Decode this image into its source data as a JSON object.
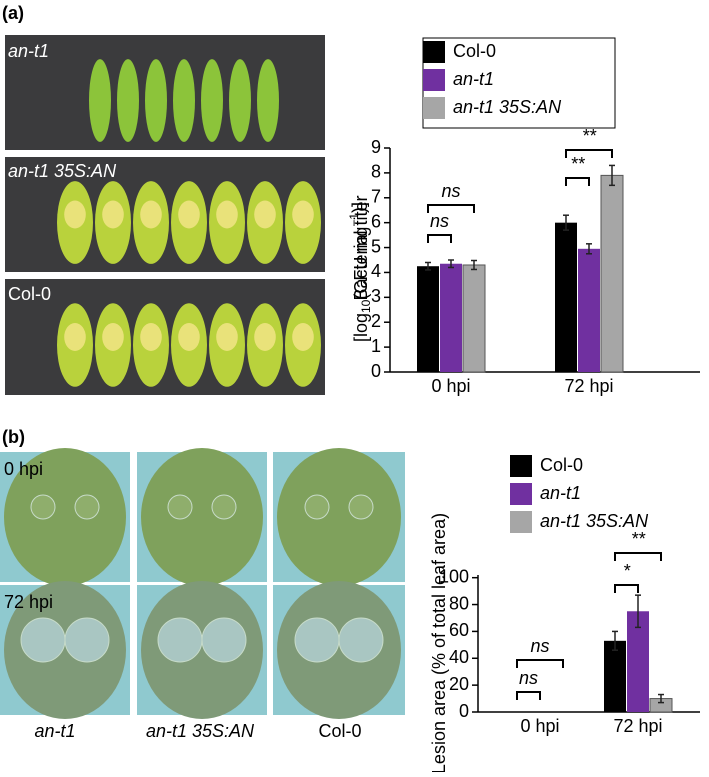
{
  "panel_labels": [
    "(a)",
    "(b)"
  ],
  "photos_a": [
    "an-t1",
    "an-t1 35S:AN",
    "Col-0"
  ],
  "photos_b": {
    "rows": [
      "0 hpi",
      "72 hpi"
    ],
    "columns": [
      "an-t1",
      "an-t1 35S:AN",
      "Col-0"
    ]
  },
  "chart_data": [
    {
      "type": "bar",
      "ylabel": [
        "Bacterial titer",
        "[log",
        "10",
        "(CFU mg",
        "−1",
        ")]"
      ],
      "categories": [
        "0 hpi",
        "72 hpi"
      ],
      "series": [
        {
          "name": "Col-0",
          "color": "#000000",
          "values": [
            4.25,
            6.0
          ],
          "errors": [
            0.15,
            0.3
          ]
        },
        {
          "name": "an-t1",
          "color": "#7030a0",
          "values": [
            4.35,
            4.95
          ],
          "errors": [
            0.15,
            0.2
          ]
        },
        {
          "name": "an-t1 35S:AN",
          "color": "#a6a6a6",
          "values": [
            4.3,
            7.9
          ],
          "errors": [
            0.18,
            0.4
          ]
        }
      ],
      "ylim": [
        0,
        9
      ],
      "yticks": [
        0,
        1,
        2,
        3,
        4,
        5,
        6,
        7,
        8,
        9
      ],
      "annotations": [
        {
          "text": "ns",
          "category": 0,
          "series": [
            0,
            1
          ]
        },
        {
          "text": "ns",
          "category": 0,
          "series": [
            0,
            2
          ]
        },
        {
          "text": "**",
          "category": 1,
          "series": [
            0,
            1
          ]
        },
        {
          "text": "**",
          "category": 1,
          "series": [
            0,
            2
          ]
        }
      ]
    },
    {
      "type": "bar",
      "ylabel": [
        "Lesion area (% of total leaf area)"
      ],
      "categories": [
        "0 hpi",
        "72 hpi"
      ],
      "series": [
        {
          "name": "Col-0",
          "color": "#000000",
          "values": [
            0,
            53
          ],
          "errors": [
            0,
            7
          ]
        },
        {
          "name": "an-t1",
          "color": "#7030a0",
          "values": [
            0,
            75
          ],
          "errors": [
            0,
            12
          ]
        },
        {
          "name": "an-t1 35S:AN",
          "color": "#a6a6a6",
          "values": [
            0,
            10
          ],
          "errors": [
            0,
            3
          ]
        }
      ],
      "ylim": [
        0,
        102
      ],
      "yticks": [
        0,
        20,
        40,
        60,
        80,
        100
      ],
      "annotations": [
        {
          "text": "ns",
          "category": 0,
          "series": [
            0,
            1
          ]
        },
        {
          "text": "ns",
          "category": 0,
          "series": [
            0,
            2
          ]
        },
        {
          "text": "*",
          "category": 1,
          "series": [
            0,
            1
          ]
        },
        {
          "text": "**",
          "category": 1,
          "series": [
            0,
            2
          ]
        }
      ]
    }
  ]
}
